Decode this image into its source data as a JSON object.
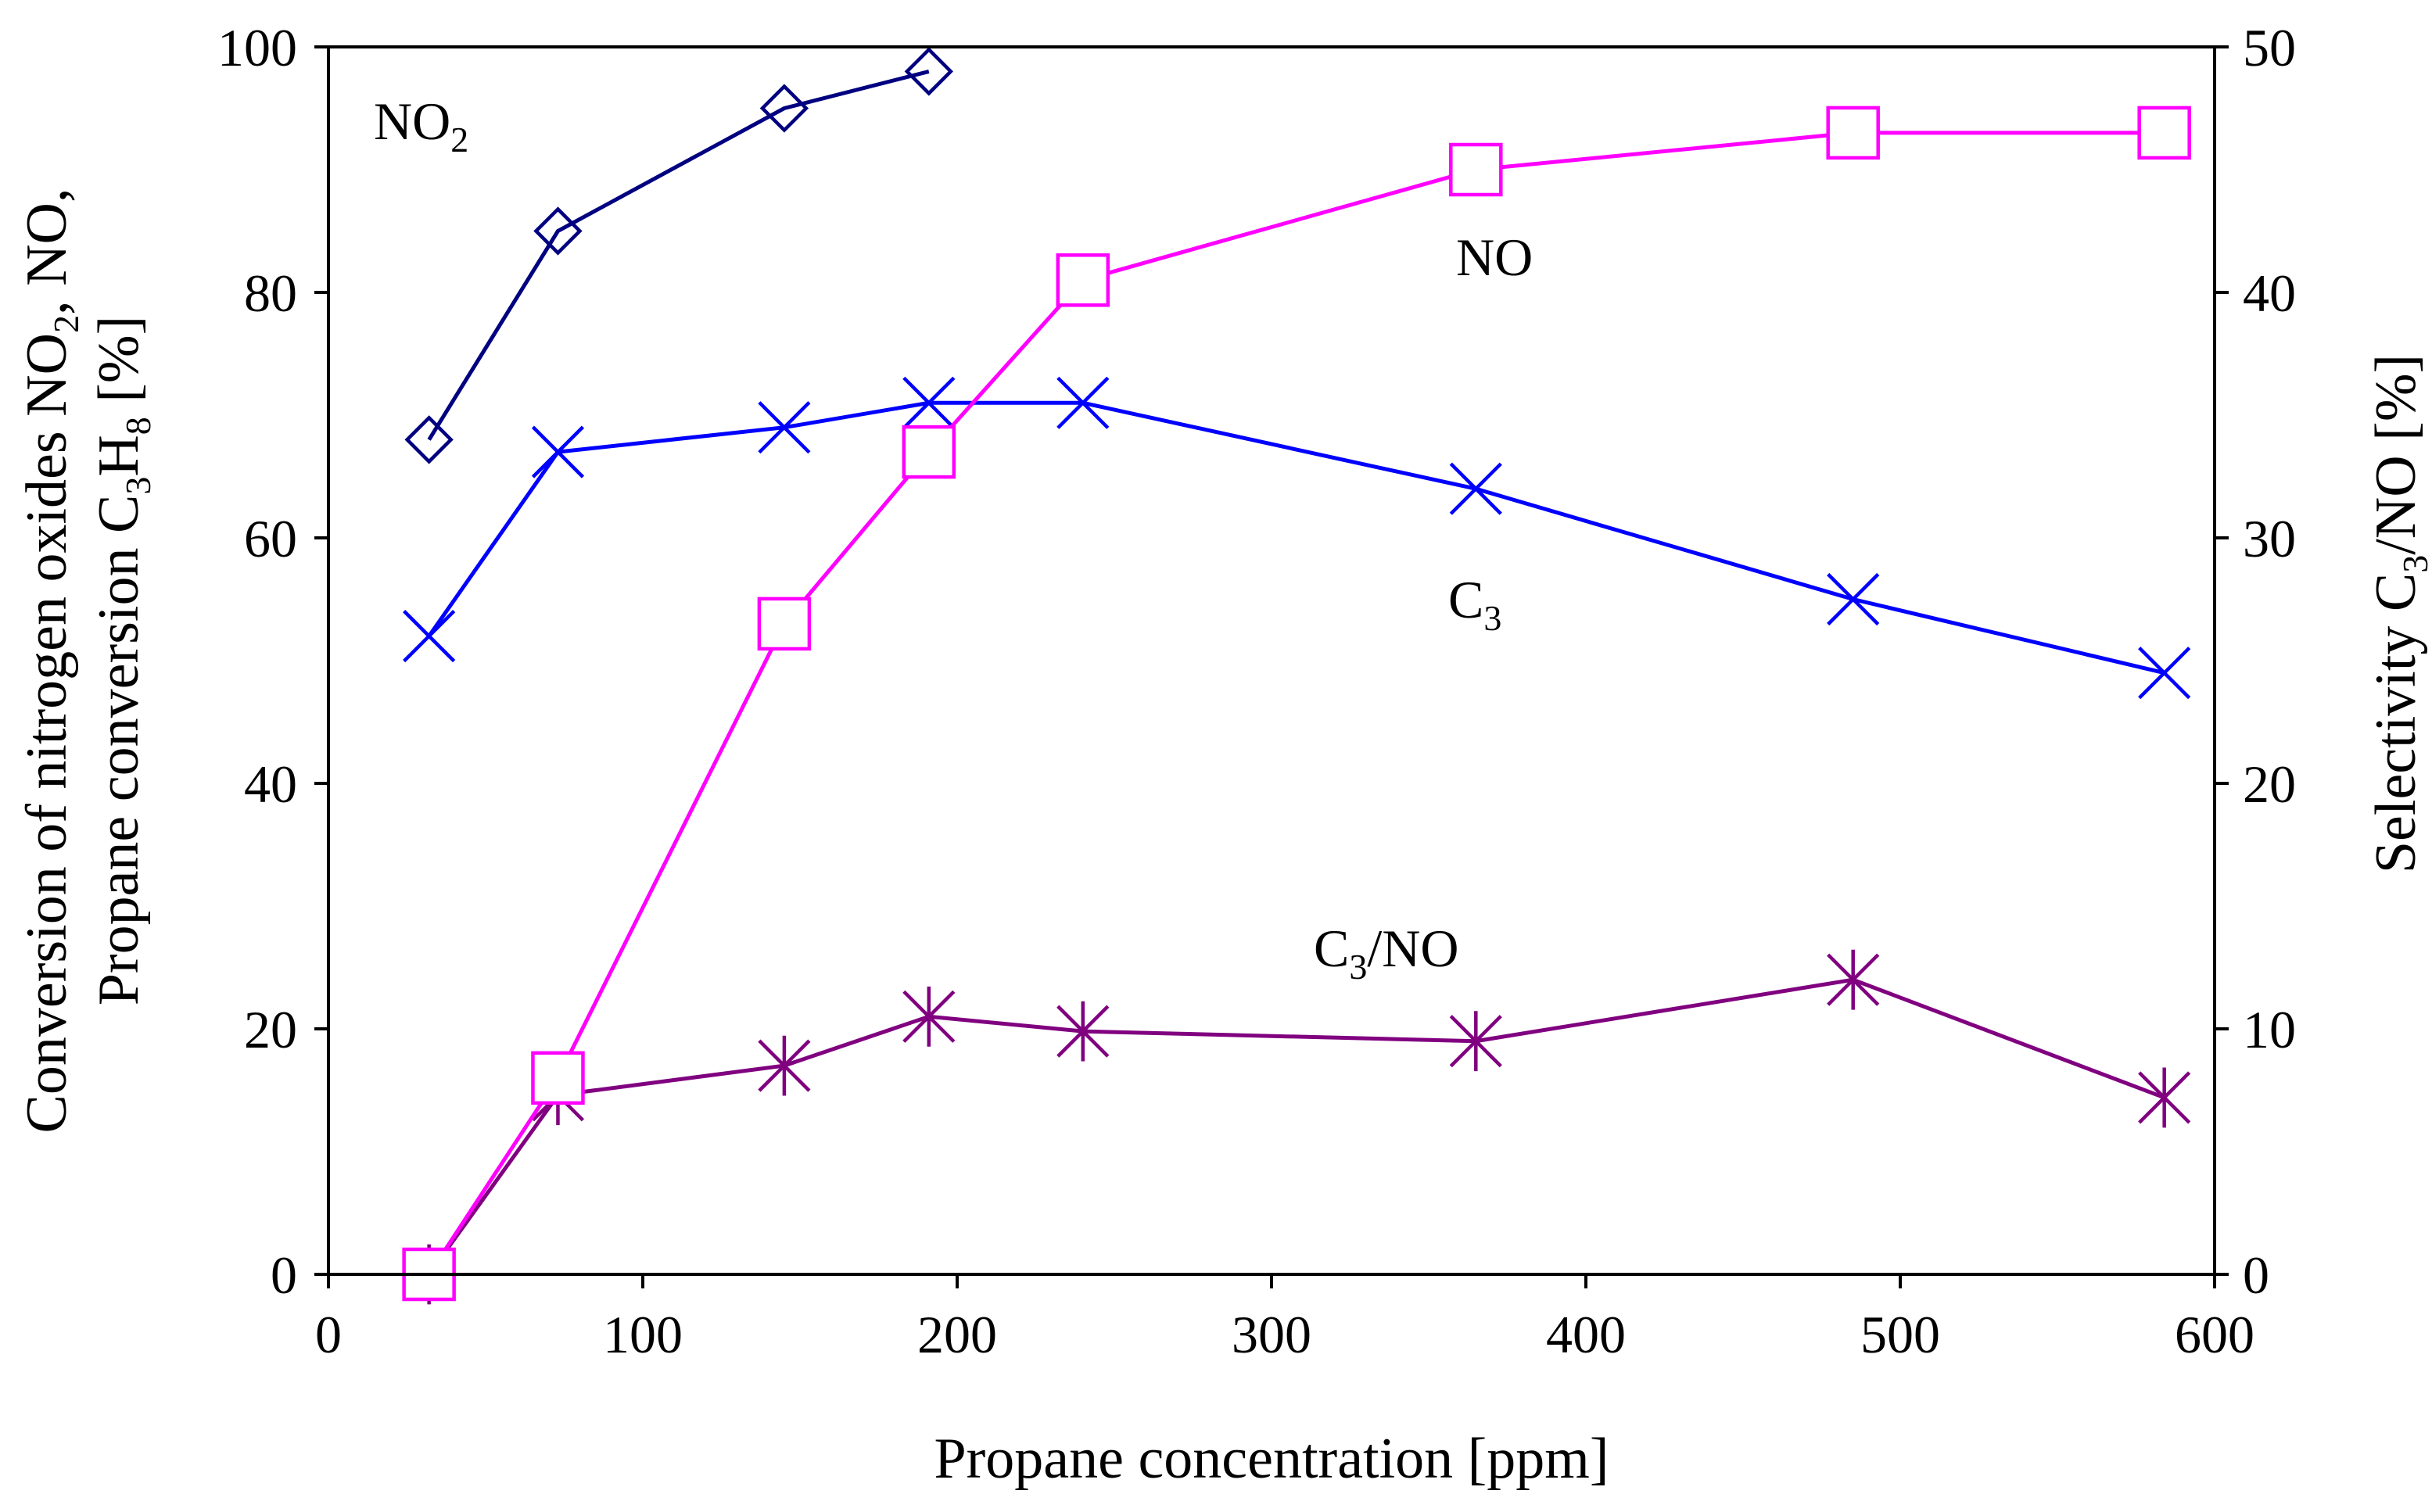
{
  "chart_data": {
    "type": "line",
    "xlabel": "Propane concentration [ppm]",
    "xlim": [
      0,
      600
    ],
    "x_ticks": [
      0,
      100,
      200,
      300,
      400,
      500,
      600
    ],
    "ylabel_left": {
      "line1": [
        "Conversion of nitrogen oxides NO",
        "2",
        ", NO,"
      ],
      "line2": [
        "Propane conversion C",
        "3",
        "H",
        "8",
        " [%]"
      ]
    },
    "ylim_left": [
      0,
      100
    ],
    "y_ticks_left": [
      0,
      20,
      40,
      60,
      80,
      100
    ],
    "ylabel_right": [
      "Selectivity C",
      "3",
      "/NO [%]"
    ],
    "ylim_right": [
      0,
      50
    ],
    "y_ticks_right": [
      0,
      10,
      20,
      30,
      40,
      50
    ],
    "series": [
      {
        "name": "NO2",
        "label": [
          "NO",
          "2"
        ],
        "axis": "left",
        "color": "#000080",
        "marker": "diamond",
        "x": [
          32,
          73,
          145,
          191
        ],
        "y": [
          68,
          85,
          95,
          98
        ]
      },
      {
        "name": "NO",
        "label": [
          "NO",
          ""
        ],
        "axis": "left",
        "color": "#ff00ff",
        "marker": "square",
        "x": [
          32,
          73,
          145,
          191,
          240,
          365,
          485,
          584
        ],
        "y": [
          0,
          16,
          53,
          67,
          81,
          90,
          93,
          93
        ]
      },
      {
        "name": "C3",
        "label": [
          "C",
          "3"
        ],
        "axis": "left",
        "color": "#0000ff",
        "marker": "x",
        "x": [
          32,
          73,
          145,
          191,
          240,
          365,
          485,
          584
        ],
        "y": [
          52,
          67,
          69,
          71,
          71,
          64,
          55,
          49
        ]
      },
      {
        "name": "C3/NO",
        "label": [
          "C",
          "3",
          "/NO"
        ],
        "axis": "right",
        "color": "#800080",
        "marker": "asterisk",
        "x": [
          32,
          73,
          145,
          191,
          240,
          365,
          485,
          584
        ],
        "y": [
          0,
          7.3,
          8.5,
          10.5,
          9.9,
          9.5,
          12,
          7.2
        ]
      }
    ]
  }
}
